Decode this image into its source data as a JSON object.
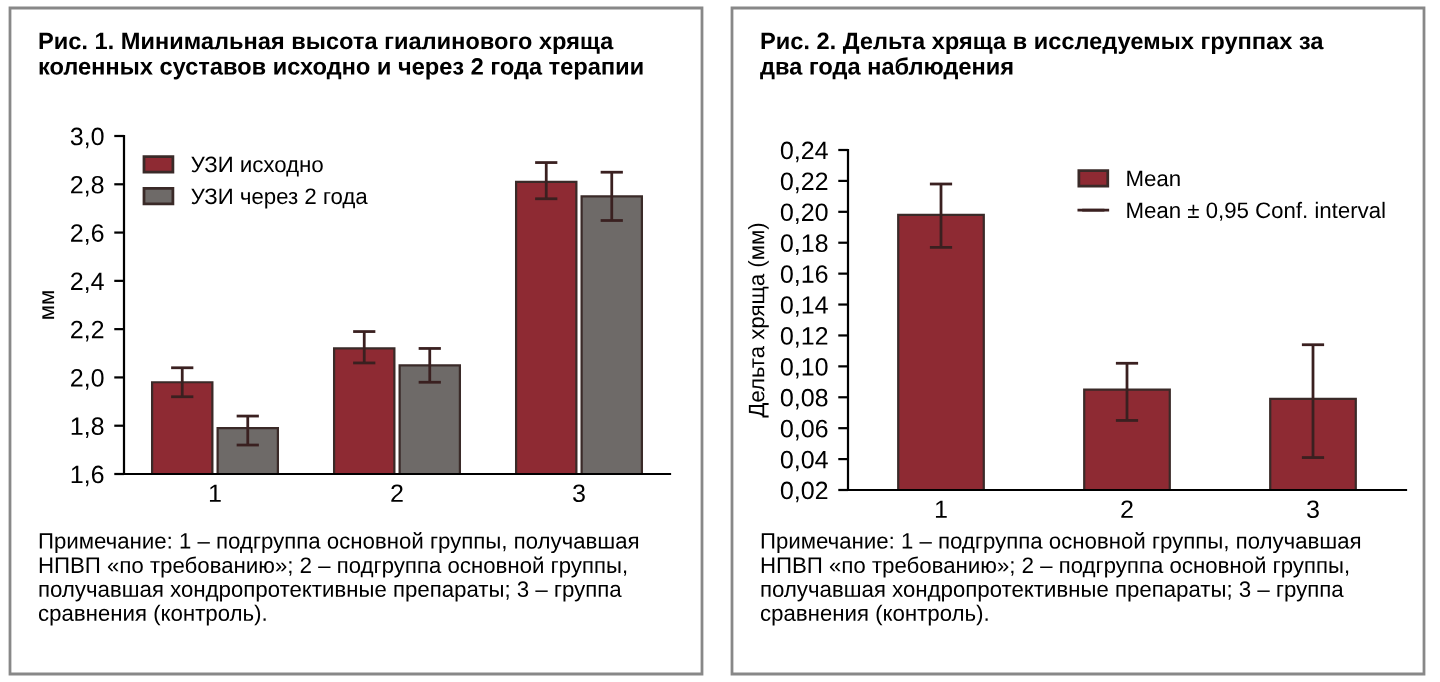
{
  "chart_data": [
    {
      "type": "bar",
      "title": "Рис. 1. Минимальная высота гиалинового хряща коленных суставов исходно и через 2 года терапии",
      "ylabel": "мм",
      "categories": [
        "1",
        "2",
        "3"
      ],
      "series": [
        {
          "name": "УЗИ исходно",
          "color": "#8e2a33",
          "values": [
            1.98,
            2.12,
            2.81
          ],
          "errors": [
            [
              1.92,
              2.04
            ],
            [
              2.06,
              2.19
            ],
            [
              2.74,
              2.89
            ]
          ]
        },
        {
          "name": "УЗИ через 2 года",
          "color": "#6e6a68",
          "values": [
            1.79,
            2.05,
            2.75
          ],
          "errors": [
            [
              1.72,
              1.84
            ],
            [
              1.98,
              2.12
            ],
            [
              2.65,
              2.85
            ]
          ]
        }
      ],
      "ylim": [
        1.6,
        3.0
      ],
      "yticks": [
        {
          "value": 1.6,
          "label": "1,6"
        },
        {
          "value": 1.8,
          "label": "1,8"
        },
        {
          "value": 2.0,
          "label": "2,0"
        },
        {
          "value": 2.2,
          "label": "2,2"
        },
        {
          "value": 2.4,
          "label": "2,4"
        },
        {
          "value": 2.6,
          "label": "2,6"
        },
        {
          "value": 2.8,
          "label": "2,8"
        },
        {
          "value": 3.0,
          "label": "3,0"
        }
      ],
      "legend": "top left",
      "grid": false,
      "annotations": [
        "Примечание: 1 – подгруппа основной группы, получавшая НПВП «по требованию»; 2 – подгруппа основной группы, получавшая хондропротективные препараты; 3 – группа сравнения (контроль)."
      ]
    },
    {
      "type": "bar",
      "title": "Рис. 2. Дельта хряща в исследуемых группах за два года наблюдения",
      "ylabel": "Дельта хряща (мм)",
      "categories": [
        "1",
        "2",
        "3"
      ],
      "series": [
        {
          "name": "Mean",
          "color": "#8e2a33",
          "values": [
            0.198,
            0.085,
            0.079
          ],
          "errors": [
            [
              0.177,
              0.218
            ],
            [
              0.065,
              0.102
            ],
            [
              0.041,
              0.114
            ]
          ]
        }
      ],
      "ylim": [
        0.02,
        0.24
      ],
      "yticks": [
        {
          "value": 0.02,
          "label": "0,02"
        },
        {
          "value": 0.04,
          "label": "0,04"
        },
        {
          "value": 0.06,
          "label": "0,06"
        },
        {
          "value": 0.08,
          "label": "0,08"
        },
        {
          "value": 0.1,
          "label": "0,10"
        },
        {
          "value": 0.12,
          "label": "0,12"
        },
        {
          "value": 0.14,
          "label": "0,14"
        },
        {
          "value": 0.16,
          "label": "0,16"
        },
        {
          "value": 0.18,
          "label": "0,18"
        },
        {
          "value": 0.2,
          "label": "0,20"
        },
        {
          "value": 0.22,
          "label": "0,22"
        },
        {
          "value": 0.24,
          "label": "0,24"
        }
      ],
      "legend": "top right",
      "grid": false,
      "annotations": [
        "Mean ± 0,95 Conf. interval",
        "Примечание: 1 – подгруппа основной группы, получавшая НПВП «по требованию»; 2 – подгруппа основной группы, получавшая хондропротективные препараты; 3 – группа сравнения (контроль)."
      ]
    }
  ]
}
